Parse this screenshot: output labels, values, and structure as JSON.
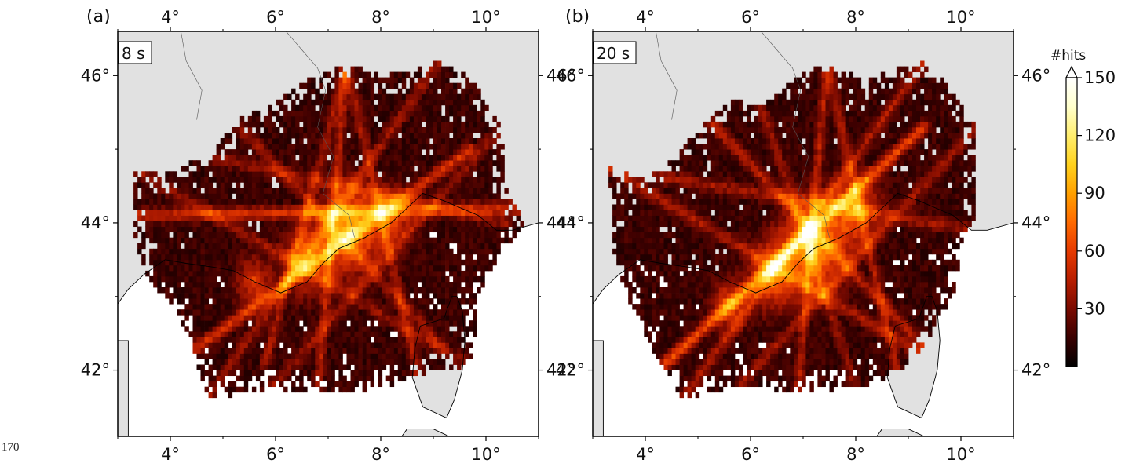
{
  "line_number": "170",
  "colors": {
    "land": "#e1e1e1",
    "sea": "#ffffff",
    "frame": "#000000",
    "colormap": [
      "#000000",
      "#3a0000",
      "#7a0a00",
      "#b81e00",
      "#e63a00",
      "#ff6a00",
      "#ffa000",
      "#ffd21e",
      "#ffee6e",
      "#ffffcc",
      "#ffffff"
    ]
  },
  "colorbar": {
    "title": "#hits",
    "ticks": [
      "30",
      "60",
      "90",
      "120",
      "150"
    ],
    "tick_values": [
      30,
      60,
      90,
      120,
      150
    ],
    "min": 0,
    "max": 150,
    "extend": "max"
  },
  "chart_data": [
    {
      "type": "heatmap",
      "panel_label": "(a)",
      "period_label": "8 s",
      "lon_ticks": [
        "4°",
        "6°",
        "8°",
        "10°"
      ],
      "lat_ticks": [
        "46°",
        "44°",
        "42°"
      ],
      "lon_tick_values": [
        4,
        6,
        8,
        10
      ],
      "lat_tick_values": [
        46,
        44,
        42
      ],
      "xlim": [
        3.0,
        11.0
      ],
      "ylim": [
        41.1,
        46.6
      ],
      "coverage_polygon": [
        [
          3.3,
          44.75
        ],
        [
          3.9,
          44.65
        ],
        [
          4.4,
          44.85
        ],
        [
          4.8,
          44.9
        ],
        [
          5.2,
          45.4
        ],
        [
          5.9,
          45.6
        ],
        [
          6.5,
          45.9
        ],
        [
          7.35,
          46.15
        ],
        [
          8.0,
          46.0
        ],
        [
          8.6,
          46.05
        ],
        [
          9.1,
          46.2
        ],
        [
          9.7,
          46.0
        ],
        [
          10.3,
          45.3
        ],
        [
          10.4,
          44.4
        ],
        [
          10.75,
          44.0
        ],
        [
          10.3,
          43.6
        ],
        [
          9.9,
          43.1
        ],
        [
          9.7,
          42.0
        ],
        [
          8.7,
          41.95
        ],
        [
          8.0,
          41.75
        ],
        [
          6.9,
          41.7
        ],
        [
          5.9,
          41.75
        ],
        [
          4.7,
          41.6
        ],
        [
          4.4,
          42.4
        ],
        [
          4.0,
          42.9
        ],
        [
          3.5,
          43.3
        ],
        [
          3.3,
          43.9
        ]
      ],
      "hot_rays": [
        {
          "from": [
            3.4,
            44.1
          ],
          "to": [
            10.75,
            44.2
          ],
          "weight": 0.7
        },
        {
          "from": [
            4.5,
            42.3
          ],
          "to": [
            9.7,
            45.0
          ],
          "weight": 0.75
        },
        {
          "from": [
            7.35,
            46.15
          ],
          "to": [
            6.8,
            41.7
          ],
          "weight": 0.55
        },
        {
          "from": [
            7.35,
            46.15
          ],
          "to": [
            5.8,
            42.1
          ],
          "weight": 0.5
        },
        {
          "from": [
            7.35,
            46.15
          ],
          "to": [
            8.7,
            41.95
          ],
          "weight": 0.5
        },
        {
          "from": [
            5.2,
            45.4
          ],
          "to": [
            9.2,
            42.3
          ],
          "weight": 0.45
        },
        {
          "from": [
            3.4,
            44.7
          ],
          "to": [
            9.6,
            42.1
          ],
          "weight": 0.4
        },
        {
          "from": [
            4.7,
            41.6
          ],
          "to": [
            9.1,
            46.2
          ],
          "weight": 0.45
        },
        {
          "from": [
            5.9,
            41.75
          ],
          "to": [
            10.3,
            45.3
          ],
          "weight": 0.4
        },
        {
          "from": [
            4.8,
            44.9
          ],
          "to": [
            10.4,
            44.0
          ],
          "weight": 0.4
        }
      ],
      "hot_spots": [
        {
          "at": [
            7.4,
            43.9
          ],
          "value": 150,
          "radius": 1.0
        },
        {
          "at": [
            6.6,
            43.5
          ],
          "value": 110,
          "radius": 0.8
        },
        {
          "at": [
            8.2,
            44.1
          ],
          "value": 100,
          "radius": 0.7
        },
        {
          "at": [
            5.6,
            43.2
          ],
          "value": 80,
          "radius": 0.6
        }
      ]
    },
    {
      "type": "heatmap",
      "panel_label": "(b)",
      "period_label": "20 s",
      "lon_ticks": [
        "4°",
        "6°",
        "8°",
        "10°"
      ],
      "lat_ticks": [
        "46°",
        "44°",
        "42°"
      ],
      "lon_tick_values": [
        4,
        6,
        8,
        10
      ],
      "lat_tick_values": [
        46,
        44,
        42
      ],
      "xlim": [
        3.0,
        11.0
      ],
      "ylim": [
        41.1,
        46.6
      ],
      "coverage_polygon": [
        [
          3.3,
          44.75
        ],
        [
          4.0,
          44.6
        ],
        [
          4.5,
          44.85
        ],
        [
          5.2,
          45.4
        ],
        [
          5.7,
          45.7
        ],
        [
          6.2,
          45.6
        ],
        [
          6.9,
          46.0
        ],
        [
          7.45,
          46.15
        ],
        [
          8.2,
          45.95
        ],
        [
          8.8,
          46.1
        ],
        [
          9.3,
          46.2
        ],
        [
          9.7,
          45.9
        ],
        [
          10.3,
          45.3
        ],
        [
          10.3,
          44.6
        ],
        [
          10.3,
          44.0
        ],
        [
          10.0,
          43.7
        ],
        [
          9.9,
          43.1
        ],
        [
          9.6,
          42.7
        ],
        [
          9.3,
          42.3
        ],
        [
          8.8,
          41.95
        ],
        [
          8.0,
          41.75
        ],
        [
          6.9,
          41.7
        ],
        [
          5.8,
          41.8
        ],
        [
          4.7,
          41.6
        ],
        [
          4.5,
          41.9
        ],
        [
          4.1,
          42.3
        ],
        [
          3.7,
          42.9
        ],
        [
          3.4,
          43.6
        ]
      ],
      "hot_rays": [
        {
          "from": [
            4.4,
            42.1
          ],
          "to": [
            9.3,
            45.3
          ],
          "weight": 0.95
        },
        {
          "from": [
            5.2,
            45.4
          ],
          "to": [
            9.6,
            42.1
          ],
          "weight": 0.55
        },
        {
          "from": [
            3.4,
            44.7
          ],
          "to": [
            9.8,
            42.0
          ],
          "weight": 0.5
        },
        {
          "from": [
            7.45,
            46.15
          ],
          "to": [
            6.9,
            41.7
          ],
          "weight": 0.55
        },
        {
          "from": [
            7.45,
            46.15
          ],
          "to": [
            8.8,
            41.95
          ],
          "weight": 0.5
        },
        {
          "from": [
            4.7,
            41.6
          ],
          "to": [
            9.3,
            46.2
          ],
          "weight": 0.5
        },
        {
          "from": [
            5.8,
            41.8
          ],
          "to": [
            10.3,
            45.3
          ],
          "weight": 0.45
        },
        {
          "from": [
            3.3,
            44.75
          ],
          "to": [
            10.3,
            43.9
          ],
          "weight": 0.45
        },
        {
          "from": [
            6.2,
            45.6
          ],
          "to": [
            8.0,
            41.75
          ],
          "weight": 0.4
        }
      ],
      "hot_spots": [
        {
          "at": [
            7.2,
            43.7
          ],
          "value": 150,
          "radius": 1.1
        },
        {
          "at": [
            6.4,
            43.3
          ],
          "value": 120,
          "radius": 0.8
        },
        {
          "at": [
            8.0,
            44.2
          ],
          "value": 110,
          "radius": 0.8
        },
        {
          "at": [
            5.6,
            42.9
          ],
          "value": 90,
          "radius": 0.6
        }
      ]
    }
  ]
}
